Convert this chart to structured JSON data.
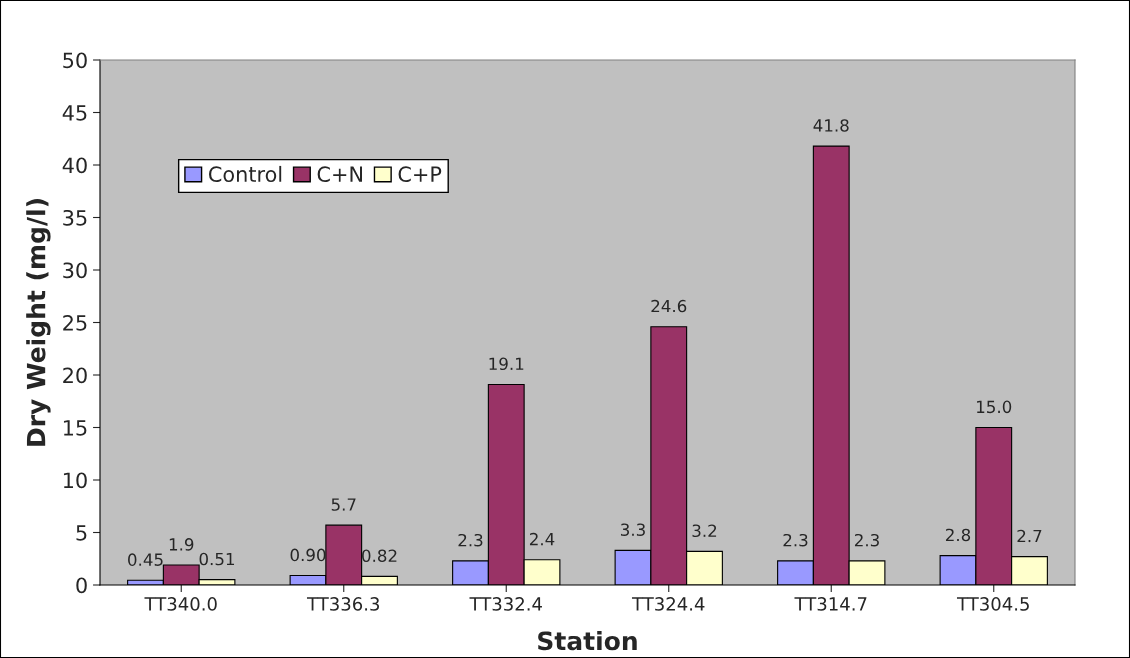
{
  "chart_data": {
    "type": "bar",
    "xlabel": "Station",
    "ylabel": "Dry Weight (mg/l)",
    "categories": [
      "TT340.0",
      "TT336.3",
      "TT332.4",
      "TT324.4",
      "TT314.7",
      "TT304.5"
    ],
    "series": [
      {
        "name": "Control",
        "color": "#9999ff",
        "values": [
          0.45,
          0.9,
          2.3,
          3.3,
          2.3,
          2.8
        ],
        "value_labels": [
          "0.45",
          "0.90",
          "2.3",
          "3.3",
          "2.3",
          "2.8"
        ]
      },
      {
        "name": "C+N",
        "color": "#993366",
        "values": [
          1.9,
          5.7,
          19.1,
          24.6,
          41.8,
          15.0
        ],
        "value_labels": [
          "1.9",
          "5.7",
          "19.1",
          "24.6",
          "41.8",
          "15.0"
        ]
      },
      {
        "name": "C+P",
        "color": "#ffffcc",
        "values": [
          0.51,
          0.82,
          2.4,
          3.2,
          2.3,
          2.7
        ],
        "value_labels": [
          "0.51",
          "0.82",
          "2.4",
          "3.2",
          "2.3",
          "2.7"
        ]
      }
    ],
    "ylim": [
      0,
      50
    ],
    "yticks": [
      0,
      5,
      10,
      15,
      20,
      25,
      30,
      35,
      40,
      45,
      50
    ],
    "grid": false,
    "legend": "upper left"
  }
}
